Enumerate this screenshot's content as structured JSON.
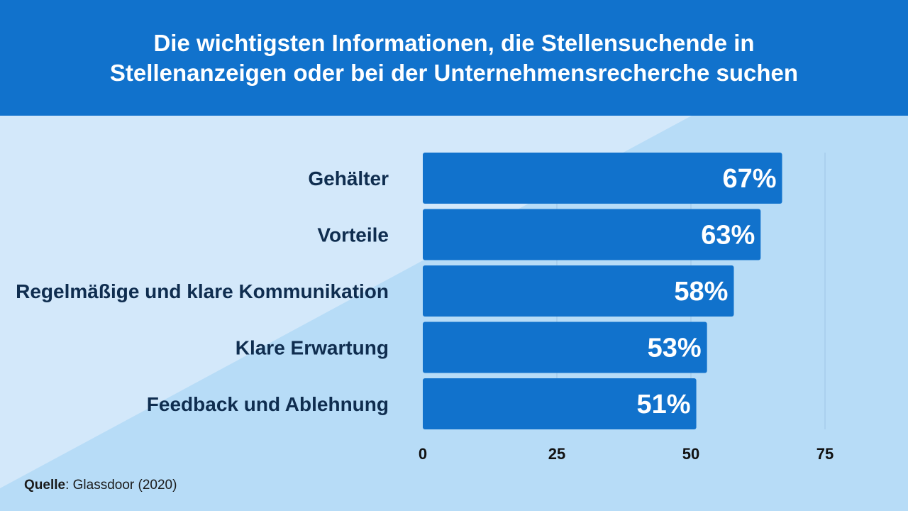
{
  "header": {
    "title": "Die wichtigsten Informationen, die Stellensuchende in Stellenanzeigen oder bei der Unternehmensrecherche suchen"
  },
  "chart_data": {
    "type": "bar",
    "orientation": "horizontal",
    "title": "Die wichtigsten Informationen, die Stellensuchende in Stellenanzeigen oder bei der Unternehmensrecherche suchen",
    "categories": [
      "Gehälter",
      "Vorteile",
      "Regelmäßige und klare Kommunikation",
      "Klare Erwartung",
      "Feedback und Ablehnung"
    ],
    "values": [
      67,
      63,
      58,
      53,
      51
    ],
    "data_labels": [
      "67%",
      "63%",
      "58%",
      "53%",
      "51%"
    ],
    "xlim": [
      0,
      75
    ],
    "xticks": [
      0,
      25,
      50,
      75
    ],
    "grid": true,
    "bar_color": "#1172cc",
    "label_color": "#0f2d4f"
  },
  "source": {
    "label": "Quelle",
    "text": ": Glassdoor (2020)"
  }
}
